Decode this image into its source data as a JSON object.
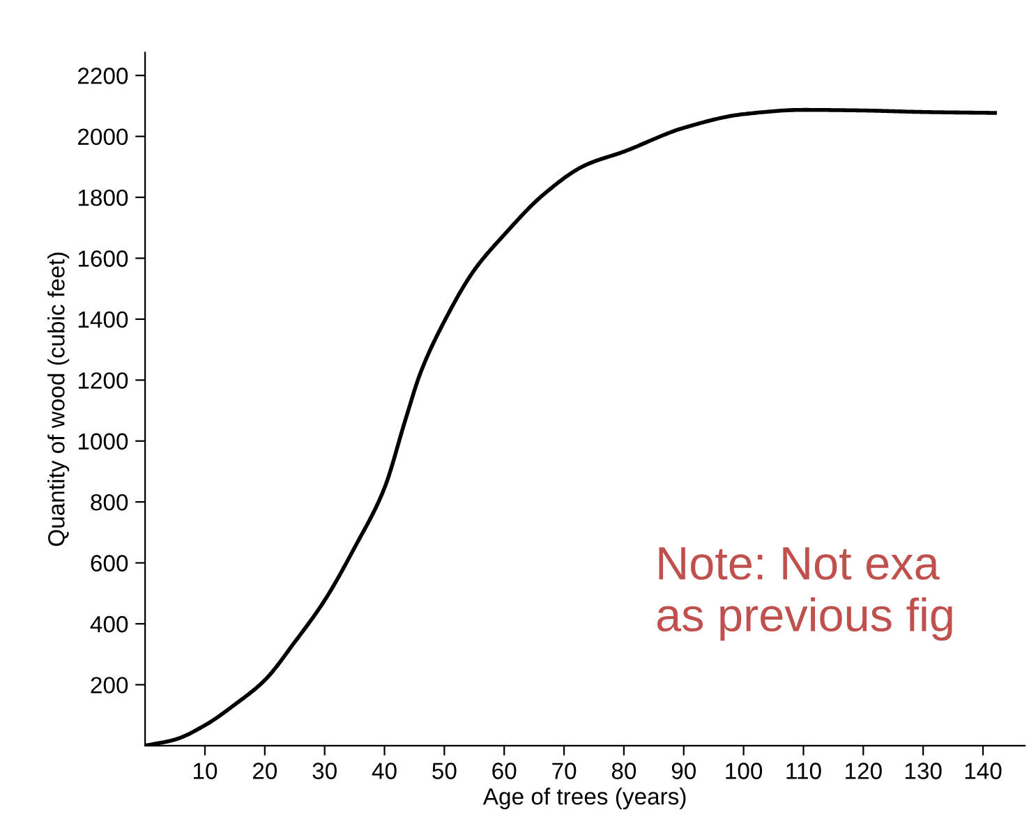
{
  "chart_data": {
    "type": "line",
    "xlabel": "Age of trees (years)",
    "ylabel": "Quantity of wood (cubic feet)",
    "x": [
      0,
      5,
      10,
      15,
      20,
      25,
      30,
      35,
      40,
      43.5,
      46,
      50,
      55,
      60,
      66.5,
      73.5,
      80,
      90,
      100,
      110,
      120,
      130,
      142
    ],
    "series": [
      {
        "color": "#000000",
        "values": [
          0,
          20,
          67,
          135,
          215,
          340,
          477,
          650,
          846,
          1070,
          1223,
          1393,
          1561,
          1677,
          1808,
          1905,
          1950,
          2028,
          2073,
          2087,
          2085,
          2080,
          2077
        ]
      }
    ],
    "xlim": [
      0,
      147
    ],
    "ylim": [
      0,
      2275
    ],
    "xticks": [
      10,
      20,
      30,
      40,
      50,
      60,
      70,
      80,
      90,
      100,
      110,
      120,
      130,
      140
    ],
    "yticks": [
      200,
      400,
      600,
      800,
      1000,
      1200,
      1400,
      1600,
      1800,
      2000,
      2200
    ],
    "grid": false,
    "marker": "none",
    "line_style": "solid",
    "annotations": [
      "Note: Not exa\nas previous fig"
    ]
  }
}
